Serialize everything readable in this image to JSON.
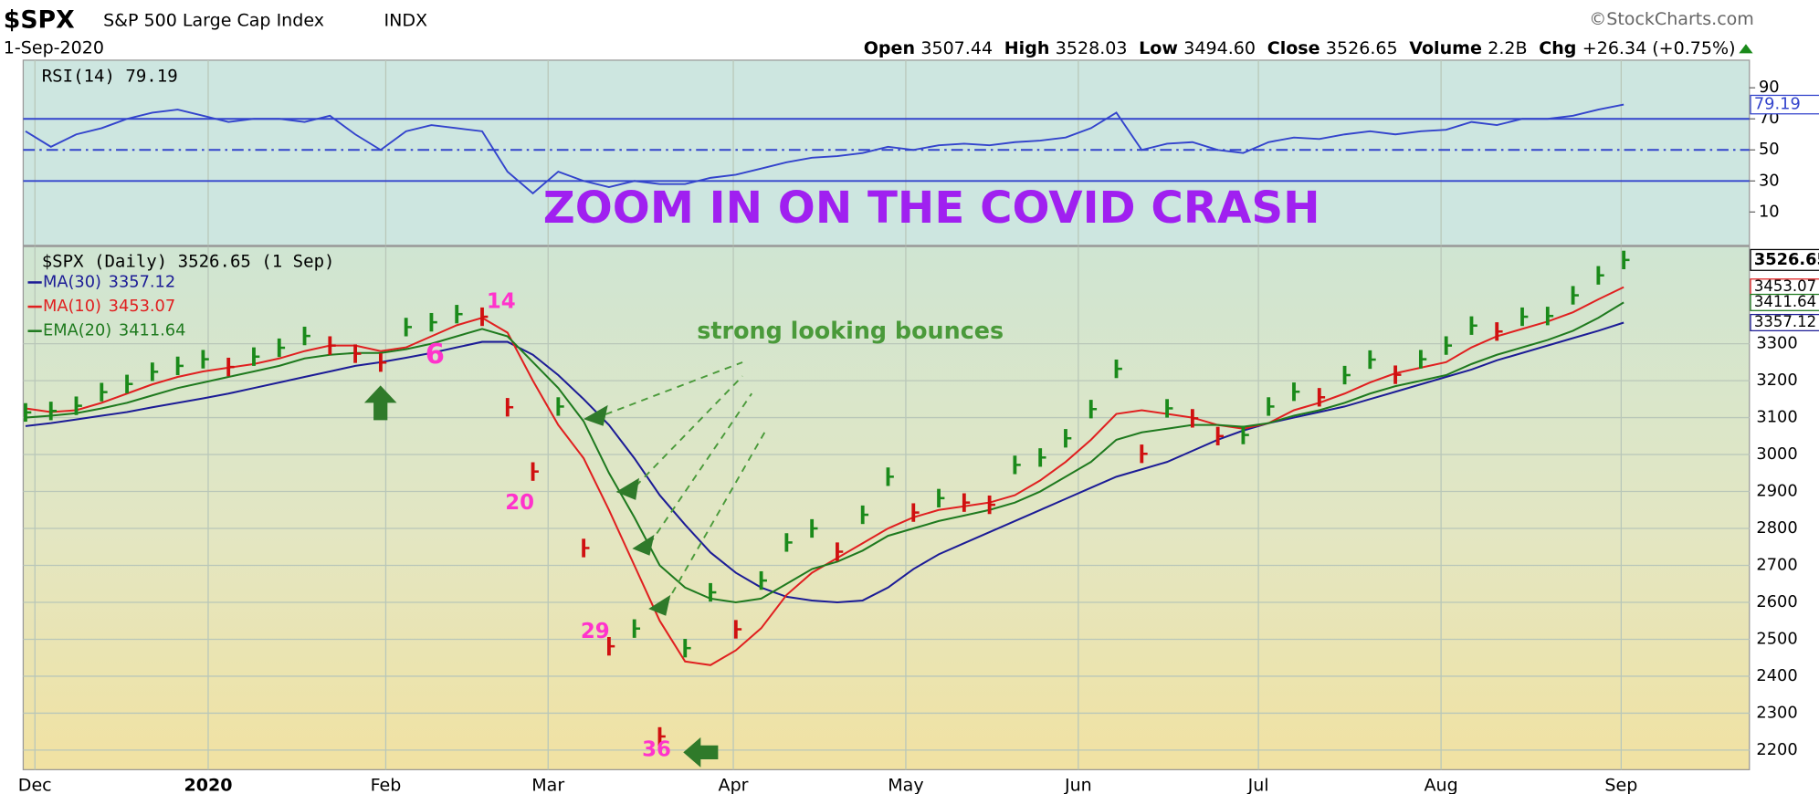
{
  "header": {
    "symbol": "$SPX",
    "name": "S&P 500 Large Cap Index",
    "exchange": "INDX",
    "date": "1-Sep-2020",
    "source": "©StockCharts.com",
    "quote": [
      {
        "label": "Open",
        "value": "3507.44"
      },
      {
        "label": "High",
        "value": "3528.03"
      },
      {
        "label": "Low",
        "value": "3494.60"
      },
      {
        "label": "Close",
        "value": "3526.65"
      },
      {
        "label": "Volume",
        "value": "2.2B"
      },
      {
        "label": "Chg",
        "value": "+26.34 (+0.75%)"
      }
    ]
  },
  "chart_data": [
    {
      "type": "line",
      "series": [
        {
          "name": "RSI(14)",
          "color": "#3344cc",
          "values": [
            62,
            52,
            60,
            64,
            70,
            74,
            76,
            72,
            68,
            70,
            70,
            68,
            72,
            60,
            50,
            62,
            66,
            64,
            62,
            36,
            22,
            36,
            30,
            26,
            30,
            28,
            28,
            32,
            34,
            38,
            42,
            45,
            46,
            48,
            52,
            50,
            53,
            54,
            53,
            55,
            56,
            58,
            64,
            74,
            50,
            54,
            55,
            50,
            48,
            55,
            58,
            57,
            60,
            62,
            60,
            62,
            63,
            68,
            66,
            70,
            70,
            72,
            76,
            79.19
          ]
        }
      ],
      "levels": [
        70,
        50,
        30
      ],
      "xlim": [
        0,
        68
      ],
      "ylim": [
        -11.5,
        107.8
      ],
      "yticks": [
        10,
        30,
        50,
        70,
        90
      ],
      "annotations": [
        "ZOOM IN ON THE COVID CRASH"
      ]
    },
    {
      "type": "price",
      "title": "$SPX (Daily)",
      "date_label": "(1 Sep)",
      "values": [
        3114,
        3118,
        3132,
        3169,
        3191,
        3224,
        3240,
        3258,
        3237,
        3265,
        3289,
        3321,
        3295,
        3273,
        3249,
        3345,
        3358,
        3380,
        3373,
        3128,
        2954,
        3130,
        2747,
        2481,
        2529,
        2237,
        2476,
        2627,
        2527,
        2659,
        2762,
        2800,
        2737,
        2837,
        2940,
        2843,
        2882,
        2870,
        2864,
        2972,
        2992,
        3044,
        3123,
        3232,
        3002,
        3125,
        3098,
        3050,
        3053,
        3130,
        3170,
        3155,
        3215,
        3257,
        3216,
        3258,
        3295,
        3349,
        3333,
        3373,
        3375,
        3431,
        3485,
        3526.65
      ],
      "up_color": "#1a8a1a",
      "down_color": "#d01010",
      "series": [
        {
          "name": "MA(30)",
          "color": "#1c1c96",
          "values": [
            3077,
            3085,
            3095,
            3105,
            3115,
            3128,
            3140,
            3152,
            3165,
            3180,
            3195,
            3210,
            3225,
            3240,
            3250,
            3262,
            3275,
            3290,
            3305,
            3305,
            3270,
            3215,
            3150,
            3080,
            2990,
            2890,
            2810,
            2735,
            2680,
            2640,
            2615,
            2605,
            2600,
            2605,
            2640,
            2690,
            2730,
            2760,
            2790,
            2820,
            2850,
            2880,
            2910,
            2940,
            2960,
            2980,
            3010,
            3040,
            3065,
            3085,
            3100,
            3115,
            3130,
            3150,
            3170,
            3190,
            3210,
            3230,
            3255,
            3275,
            3295,
            3315,
            3335,
            3357.12
          ]
        },
        {
          "name": "MA(10)",
          "color": "#e02020",
          "values": [
            3125,
            3115,
            3120,
            3140,
            3165,
            3190,
            3210,
            3225,
            3235,
            3245,
            3260,
            3280,
            3295,
            3295,
            3280,
            3290,
            3320,
            3350,
            3370,
            3330,
            3200,
            3080,
            2990,
            2850,
            2700,
            2550,
            2440,
            2430,
            2470,
            2530,
            2620,
            2680,
            2720,
            2760,
            2800,
            2830,
            2850,
            2860,
            2870,
            2890,
            2930,
            2980,
            3040,
            3110,
            3120,
            3110,
            3100,
            3080,
            3070,
            3085,
            3120,
            3140,
            3165,
            3195,
            3220,
            3235,
            3250,
            3290,
            3320,
            3340,
            3360,
            3385,
            3420,
            3453.07
          ]
        },
        {
          "name": "EMA(20)",
          "color": "#1f7a1f",
          "values": [
            3100,
            3105,
            3112,
            3125,
            3140,
            3160,
            3180,
            3195,
            3210,
            3225,
            3240,
            3260,
            3270,
            3275,
            3275,
            3285,
            3300,
            3320,
            3340,
            3320,
            3250,
            3180,
            3090,
            2950,
            2830,
            2700,
            2640,
            2610,
            2600,
            2610,
            2650,
            2690,
            2710,
            2740,
            2780,
            2800,
            2820,
            2835,
            2850,
            2870,
            2900,
            2940,
            2980,
            3040,
            3060,
            3070,
            3080,
            3080,
            3075,
            3085,
            3105,
            3120,
            3140,
            3165,
            3185,
            3200,
            3215,
            3245,
            3270,
            3290,
            3310,
            3335,
            3370,
            3411.64
          ]
        }
      ],
      "xlim": [
        0,
        68
      ],
      "xticks": [
        {
          "value": 0.37,
          "label": "Dec"
        },
        {
          "value": 7.2,
          "label": "2020"
        },
        {
          "value": 14.2,
          "label": "Feb"
        },
        {
          "value": 20.6,
          "label": "Mar"
        },
        {
          "value": 27.9,
          "label": "Apr"
        },
        {
          "value": 34.7,
          "label": "May"
        },
        {
          "value": 41.5,
          "label": "Jun"
        },
        {
          "value": 48.6,
          "label": "Jul"
        },
        {
          "value": 55.8,
          "label": "Aug"
        },
        {
          "value": 62.9,
          "label": "Sep"
        }
      ],
      "ylim": [
        2147,
        3563
      ],
      "yticks": [
        2200,
        2300,
        2400,
        2500,
        2600,
        2700,
        2800,
        2900,
        3000,
        3100,
        3200,
        3300
      ],
      "grid": true,
      "annotations": [
        "14",
        "6",
        "20",
        "29",
        "36",
        "strong looking bounces"
      ]
    }
  ]
}
